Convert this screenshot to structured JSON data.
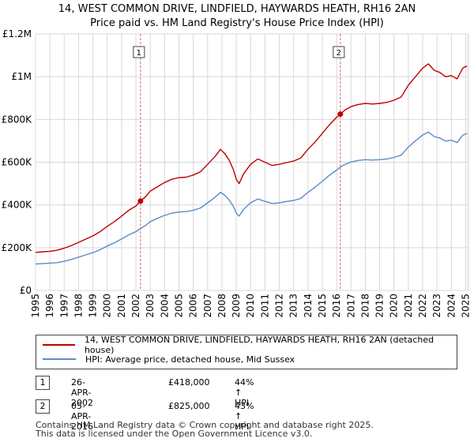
{
  "title_line1": "14, WEST COMMON DRIVE, LINDFIELD, HAYWARDS HEATH, RH16 2AN",
  "title_line2": "Price paid vs. HM Land Registry's House Price Index (HPI)",
  "colors": {
    "price": "#c00000",
    "hpi": "#5b8cc8",
    "grid": "#d8d8d8",
    "marker_line": "#e06060"
  },
  "legend": {
    "price_label": "14, WEST COMMON DRIVE, LINDFIELD, HAYWARDS HEATH, RH16 2AN (detached house)",
    "hpi_label": "HPI: Average price, detached house, Mid Sussex"
  },
  "transactions": [
    {
      "num": "1",
      "date": "26-APR-2002",
      "price": "£418,000",
      "hpi": "44% ↑ HPI"
    },
    {
      "num": "2",
      "date": "05-APR-2016",
      "price": "£825,000",
      "hpi": "43% ↑ HPI"
    }
  ],
  "footer_line1": "Contains HM Land Registry data © Crown copyright and database right 2025.",
  "footer_line2": "This data is licensed under the Open Government Licence v3.0.",
  "chart_data": {
    "type": "line",
    "xlim": [
      1995,
      2025.25
    ],
    "ylim": [
      0,
      1200000
    ],
    "y_ticks": [
      0,
      200000,
      400000,
      600000,
      800000,
      1000000,
      1200000
    ],
    "y_tick_labels": [
      "£0",
      "£200K",
      "£400K",
      "£600K",
      "£800K",
      "£1M",
      "£1.2M"
    ],
    "x_ticks": [
      1995,
      1996,
      1997,
      1998,
      1999,
      2000,
      2001,
      2002,
      2003,
      2004,
      2005,
      2006,
      2007,
      2008,
      2009,
      2010,
      2011,
      2012,
      2013,
      2014,
      2015,
      2016,
      2017,
      2018,
      2019,
      2020,
      2021,
      2022,
      2023,
      2024,
      2025
    ],
    "grid": true,
    "series": [
      {
        "name": "price",
        "points": [
          [
            1995.0,
            178000
          ],
          [
            1995.5,
            181000
          ],
          [
            1996.0,
            183000
          ],
          [
            1996.5,
            188000
          ],
          [
            1997.0,
            198000
          ],
          [
            1997.5,
            210000
          ],
          [
            1998.0,
            225000
          ],
          [
            1998.5,
            240000
          ],
          [
            1999.0,
            255000
          ],
          [
            1999.5,
            275000
          ],
          [
            2000.0,
            300000
          ],
          [
            2000.5,
            322000
          ],
          [
            2001.0,
            348000
          ],
          [
            2001.5,
            375000
          ],
          [
            2002.0,
            395000
          ],
          [
            2002.32,
            418000
          ],
          [
            2002.7,
            440000
          ],
          [
            2003.0,
            465000
          ],
          [
            2003.5,
            485000
          ],
          [
            2004.0,
            505000
          ],
          [
            2004.5,
            520000
          ],
          [
            2005.0,
            528000
          ],
          [
            2005.5,
            530000
          ],
          [
            2006.0,
            540000
          ],
          [
            2006.5,
            555000
          ],
          [
            2007.0,
            590000
          ],
          [
            2007.5,
            625000
          ],
          [
            2007.9,
            660000
          ],
          [
            2008.2,
            640000
          ],
          [
            2008.5,
            610000
          ],
          [
            2008.8,
            565000
          ],
          [
            2009.0,
            520000
          ],
          [
            2009.2,
            500000
          ],
          [
            2009.5,
            545000
          ],
          [
            2010.0,
            590000
          ],
          [
            2010.5,
            615000
          ],
          [
            2011.0,
            600000
          ],
          [
            2011.5,
            585000
          ],
          [
            2012.0,
            590000
          ],
          [
            2012.5,
            598000
          ],
          [
            2013.0,
            605000
          ],
          [
            2013.5,
            620000
          ],
          [
            2014.0,
            660000
          ],
          [
            2014.5,
            695000
          ],
          [
            2015.0,
            735000
          ],
          [
            2015.5,
            775000
          ],
          [
            2016.0,
            810000
          ],
          [
            2016.26,
            825000
          ],
          [
            2016.6,
            845000
          ],
          [
            2017.0,
            860000
          ],
          [
            2017.5,
            870000
          ],
          [
            2018.0,
            875000
          ],
          [
            2018.5,
            872000
          ],
          [
            2019.0,
            875000
          ],
          [
            2019.5,
            880000
          ],
          [
            2020.0,
            890000
          ],
          [
            2020.5,
            905000
          ],
          [
            2021.0,
            960000
          ],
          [
            2021.5,
            1000000
          ],
          [
            2022.0,
            1040000
          ],
          [
            2022.4,
            1060000
          ],
          [
            2022.8,
            1030000
          ],
          [
            2023.2,
            1020000
          ],
          [
            2023.6,
            1000000
          ],
          [
            2024.0,
            1005000
          ],
          [
            2024.4,
            990000
          ],
          [
            2024.8,
            1040000
          ],
          [
            2025.1,
            1050000
          ]
        ]
      },
      {
        "name": "hpi",
        "points": [
          [
            1995.0,
            124000
          ],
          [
            1995.5,
            126000
          ],
          [
            1996.0,
            128000
          ],
          [
            1996.5,
            130000
          ],
          [
            1997.0,
            137000
          ],
          [
            1997.5,
            145000
          ],
          [
            1998.0,
            156000
          ],
          [
            1998.5,
            166000
          ],
          [
            1999.0,
            177000
          ],
          [
            1999.5,
            191000
          ],
          [
            2000.0,
            208000
          ],
          [
            2000.5,
            223000
          ],
          [
            2001.0,
            241000
          ],
          [
            2001.5,
            260000
          ],
          [
            2002.0,
            275000
          ],
          [
            2002.32,
            290000
          ],
          [
            2002.7,
            305000
          ],
          [
            2003.0,
            322000
          ],
          [
            2003.5,
            337000
          ],
          [
            2004.0,
            351000
          ],
          [
            2004.5,
            362000
          ],
          [
            2005.0,
            367000
          ],
          [
            2005.5,
            369000
          ],
          [
            2006.0,
            375000
          ],
          [
            2006.5,
            386000
          ],
          [
            2007.0,
            410000
          ],
          [
            2007.5,
            435000
          ],
          [
            2007.9,
            459000
          ],
          [
            2008.2,
            445000
          ],
          [
            2008.5,
            424000
          ],
          [
            2008.8,
            393000
          ],
          [
            2009.0,
            362000
          ],
          [
            2009.2,
            348000
          ],
          [
            2009.5,
            379000
          ],
          [
            2010.0,
            410000
          ],
          [
            2010.5,
            428000
          ],
          [
            2011.0,
            417000
          ],
          [
            2011.5,
            407000
          ],
          [
            2012.0,
            410000
          ],
          [
            2012.5,
            416000
          ],
          [
            2013.0,
            421000
          ],
          [
            2013.5,
            431000
          ],
          [
            2014.0,
            459000
          ],
          [
            2014.5,
            483000
          ],
          [
            2015.0,
            511000
          ],
          [
            2015.5,
            539000
          ],
          [
            2016.0,
            563000
          ],
          [
            2016.26,
            577000
          ],
          [
            2016.6,
            590000
          ],
          [
            2017.0,
            601000
          ],
          [
            2017.5,
            608000
          ],
          [
            2018.0,
            612000
          ],
          [
            2018.5,
            610000
          ],
          [
            2019.0,
            612000
          ],
          [
            2019.5,
            615000
          ],
          [
            2020.0,
            622000
          ],
          [
            2020.5,
            633000
          ],
          [
            2021.0,
            671000
          ],
          [
            2021.5,
            700000
          ],
          [
            2022.0,
            727000
          ],
          [
            2022.4,
            741000
          ],
          [
            2022.8,
            720000
          ],
          [
            2023.2,
            713000
          ],
          [
            2023.6,
            699000
          ],
          [
            2024.0,
            703000
          ],
          [
            2024.4,
            692000
          ],
          [
            2024.8,
            727000
          ],
          [
            2025.1,
            734000
          ]
        ]
      }
    ],
    "annotations": [
      {
        "label": "1",
        "x": 2002.32,
        "y": 418000
      },
      {
        "label": "2",
        "x": 2016.26,
        "y": 825000
      }
    ]
  }
}
